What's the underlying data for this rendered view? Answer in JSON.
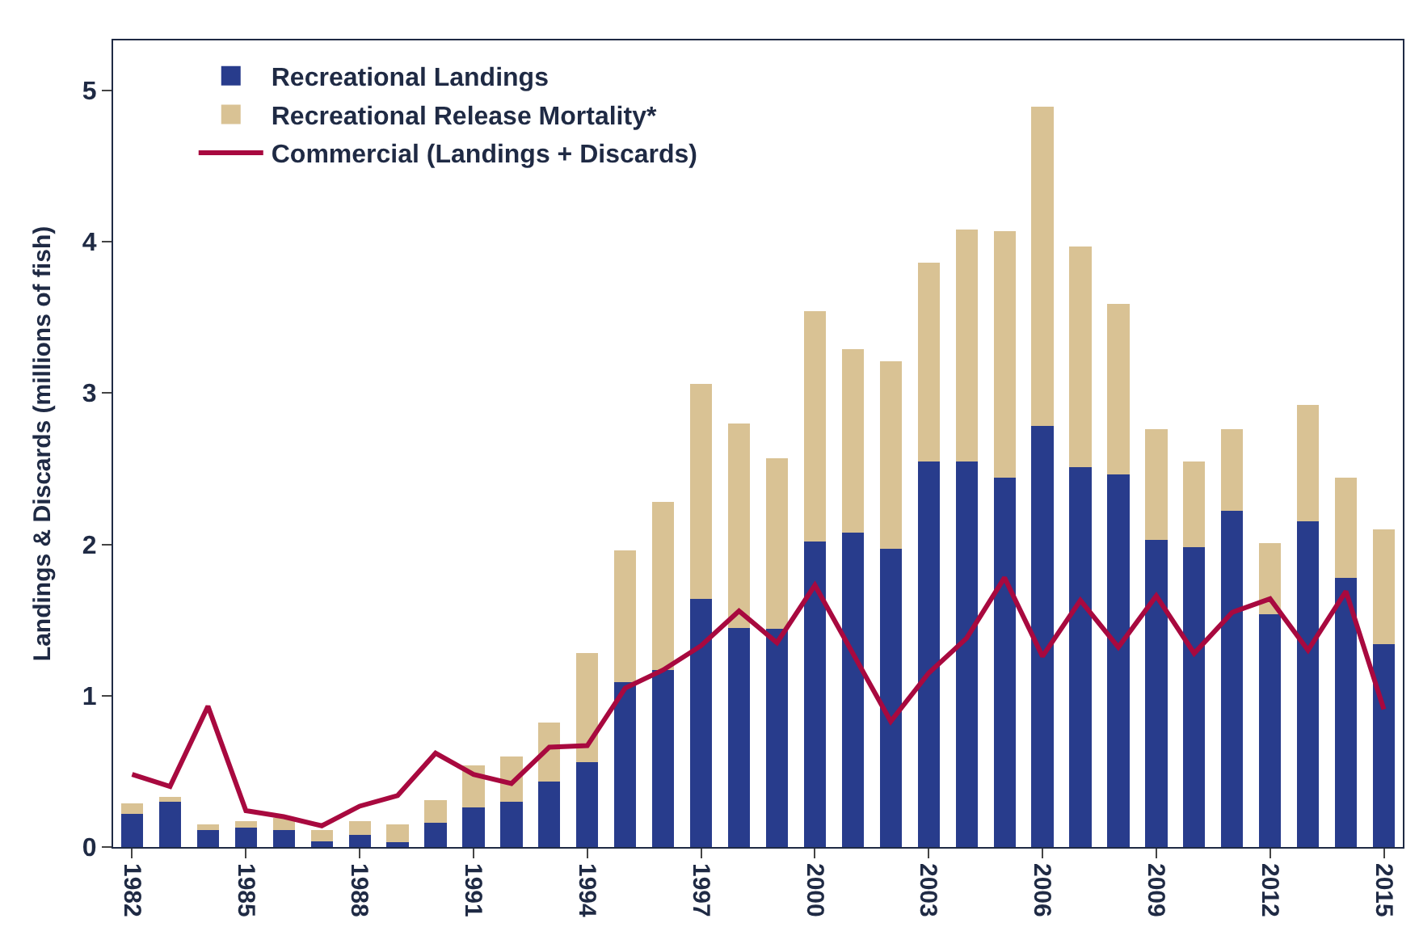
{
  "chart_data": {
    "type": "bar",
    "stacked": true,
    "ylabel": "Landings & Discards (millions of fish)",
    "categories": [
      "1982",
      null,
      null,
      "1985",
      null,
      null,
      "1988",
      null,
      null,
      "1991",
      null,
      null,
      "1994",
      null,
      null,
      "1997",
      null,
      null,
      "2000",
      null,
      null,
      "2003",
      null,
      null,
      "2006",
      null,
      null,
      "2009",
      null,
      null,
      "2012",
      null,
      null,
      "2015"
    ],
    "series": [
      {
        "name": "Recreational Landings",
        "color": "#283c8c",
        "values": [
          0.22,
          0.3,
          0.11,
          0.13,
          0.11,
          0.04,
          0.08,
          0.03,
          0.16,
          0.26,
          0.3,
          0.43,
          0.56,
          1.09,
          1.17,
          1.64,
          1.45,
          1.44,
          2.02,
          2.08,
          1.97,
          2.55,
          2.55,
          2.44,
          2.78,
          2.51,
          2.46,
          2.03,
          1.98,
          2.22,
          1.54,
          2.15,
          1.78,
          1.34
        ]
      },
      {
        "name": "Recreational Release Mortality*",
        "color": "#d9c294",
        "values": [
          0.07,
          0.03,
          0.04,
          0.04,
          0.08,
          0.07,
          0.09,
          0.12,
          0.15,
          0.28,
          0.3,
          0.39,
          0.72,
          0.87,
          1.11,
          1.42,
          1.35,
          1.13,
          1.52,
          1.21,
          1.24,
          1.31,
          1.53,
          1.63,
          2.11,
          1.46,
          1.13,
          0.73,
          0.57,
          0.54,
          0.47,
          0.77,
          0.66,
          0.76
        ]
      },
      {
        "name": "Commercial (Landings + Discards)",
        "type": "line",
        "color": "#a8093f",
        "values": [
          0.48,
          0.4,
          0.93,
          0.24,
          0.2,
          0.14,
          0.27,
          0.34,
          0.62,
          0.48,
          0.42,
          0.66,
          0.67,
          1.05,
          1.17,
          1.33,
          1.56,
          1.35,
          1.73,
          1.28,
          0.83,
          1.15,
          1.38,
          1.78,
          1.26,
          1.63,
          1.32,
          1.66,
          1.28,
          1.55,
          1.64,
          1.3,
          1.69,
          0.91
        ]
      }
    ],
    "ylim": [
      0,
      5.33
    ],
    "yticks": [
      0,
      1,
      2,
      3,
      4,
      5
    ],
    "legend": "top left",
    "marker": "none",
    "line_style": "solid"
  }
}
